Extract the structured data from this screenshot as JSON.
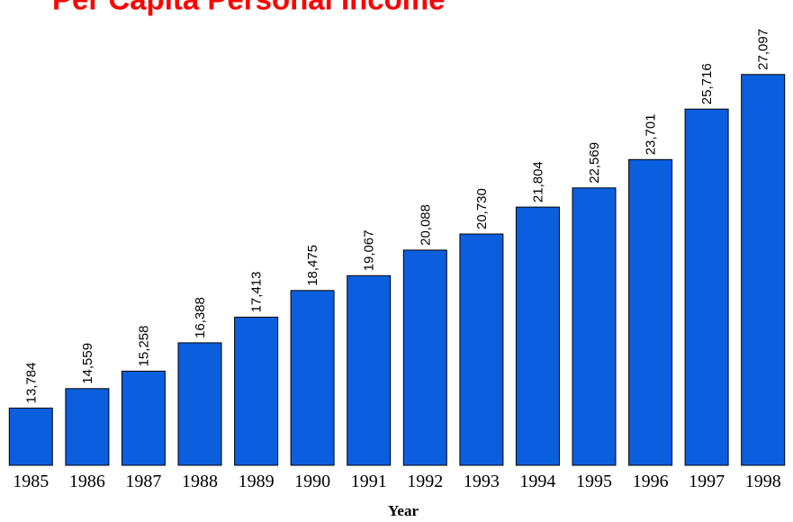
{
  "chart_data": {
    "type": "bar",
    "title": "Per Capita Personal Income",
    "xlabel": "Year",
    "ylabel": "",
    "categories": [
      "1985",
      "1986",
      "1987",
      "1988",
      "1989",
      "1990",
      "1991",
      "1992",
      "1993",
      "1994",
      "1995",
      "1996",
      "1997",
      "1998"
    ],
    "values": [
      13784,
      14559,
      15258,
      16388,
      17413,
      18475,
      19067,
      20088,
      20730,
      21804,
      22569,
      23701,
      25716,
      27097
    ],
    "value_labels": [
      "13,784",
      "14,559",
      "15,258",
      "16,388",
      "17,413",
      "18,475",
      "19,067",
      "20,088",
      "20,730",
      "21,804",
      "22,569",
      "23,701",
      "25,716",
      "27,097"
    ],
    "ylim": [
      11500,
      27700
    ],
    "grid": false,
    "legend": "none",
    "colors": {
      "bar": "#0b5fdf",
      "bar_outline": "#000000",
      "title": "#ff0000"
    }
  }
}
